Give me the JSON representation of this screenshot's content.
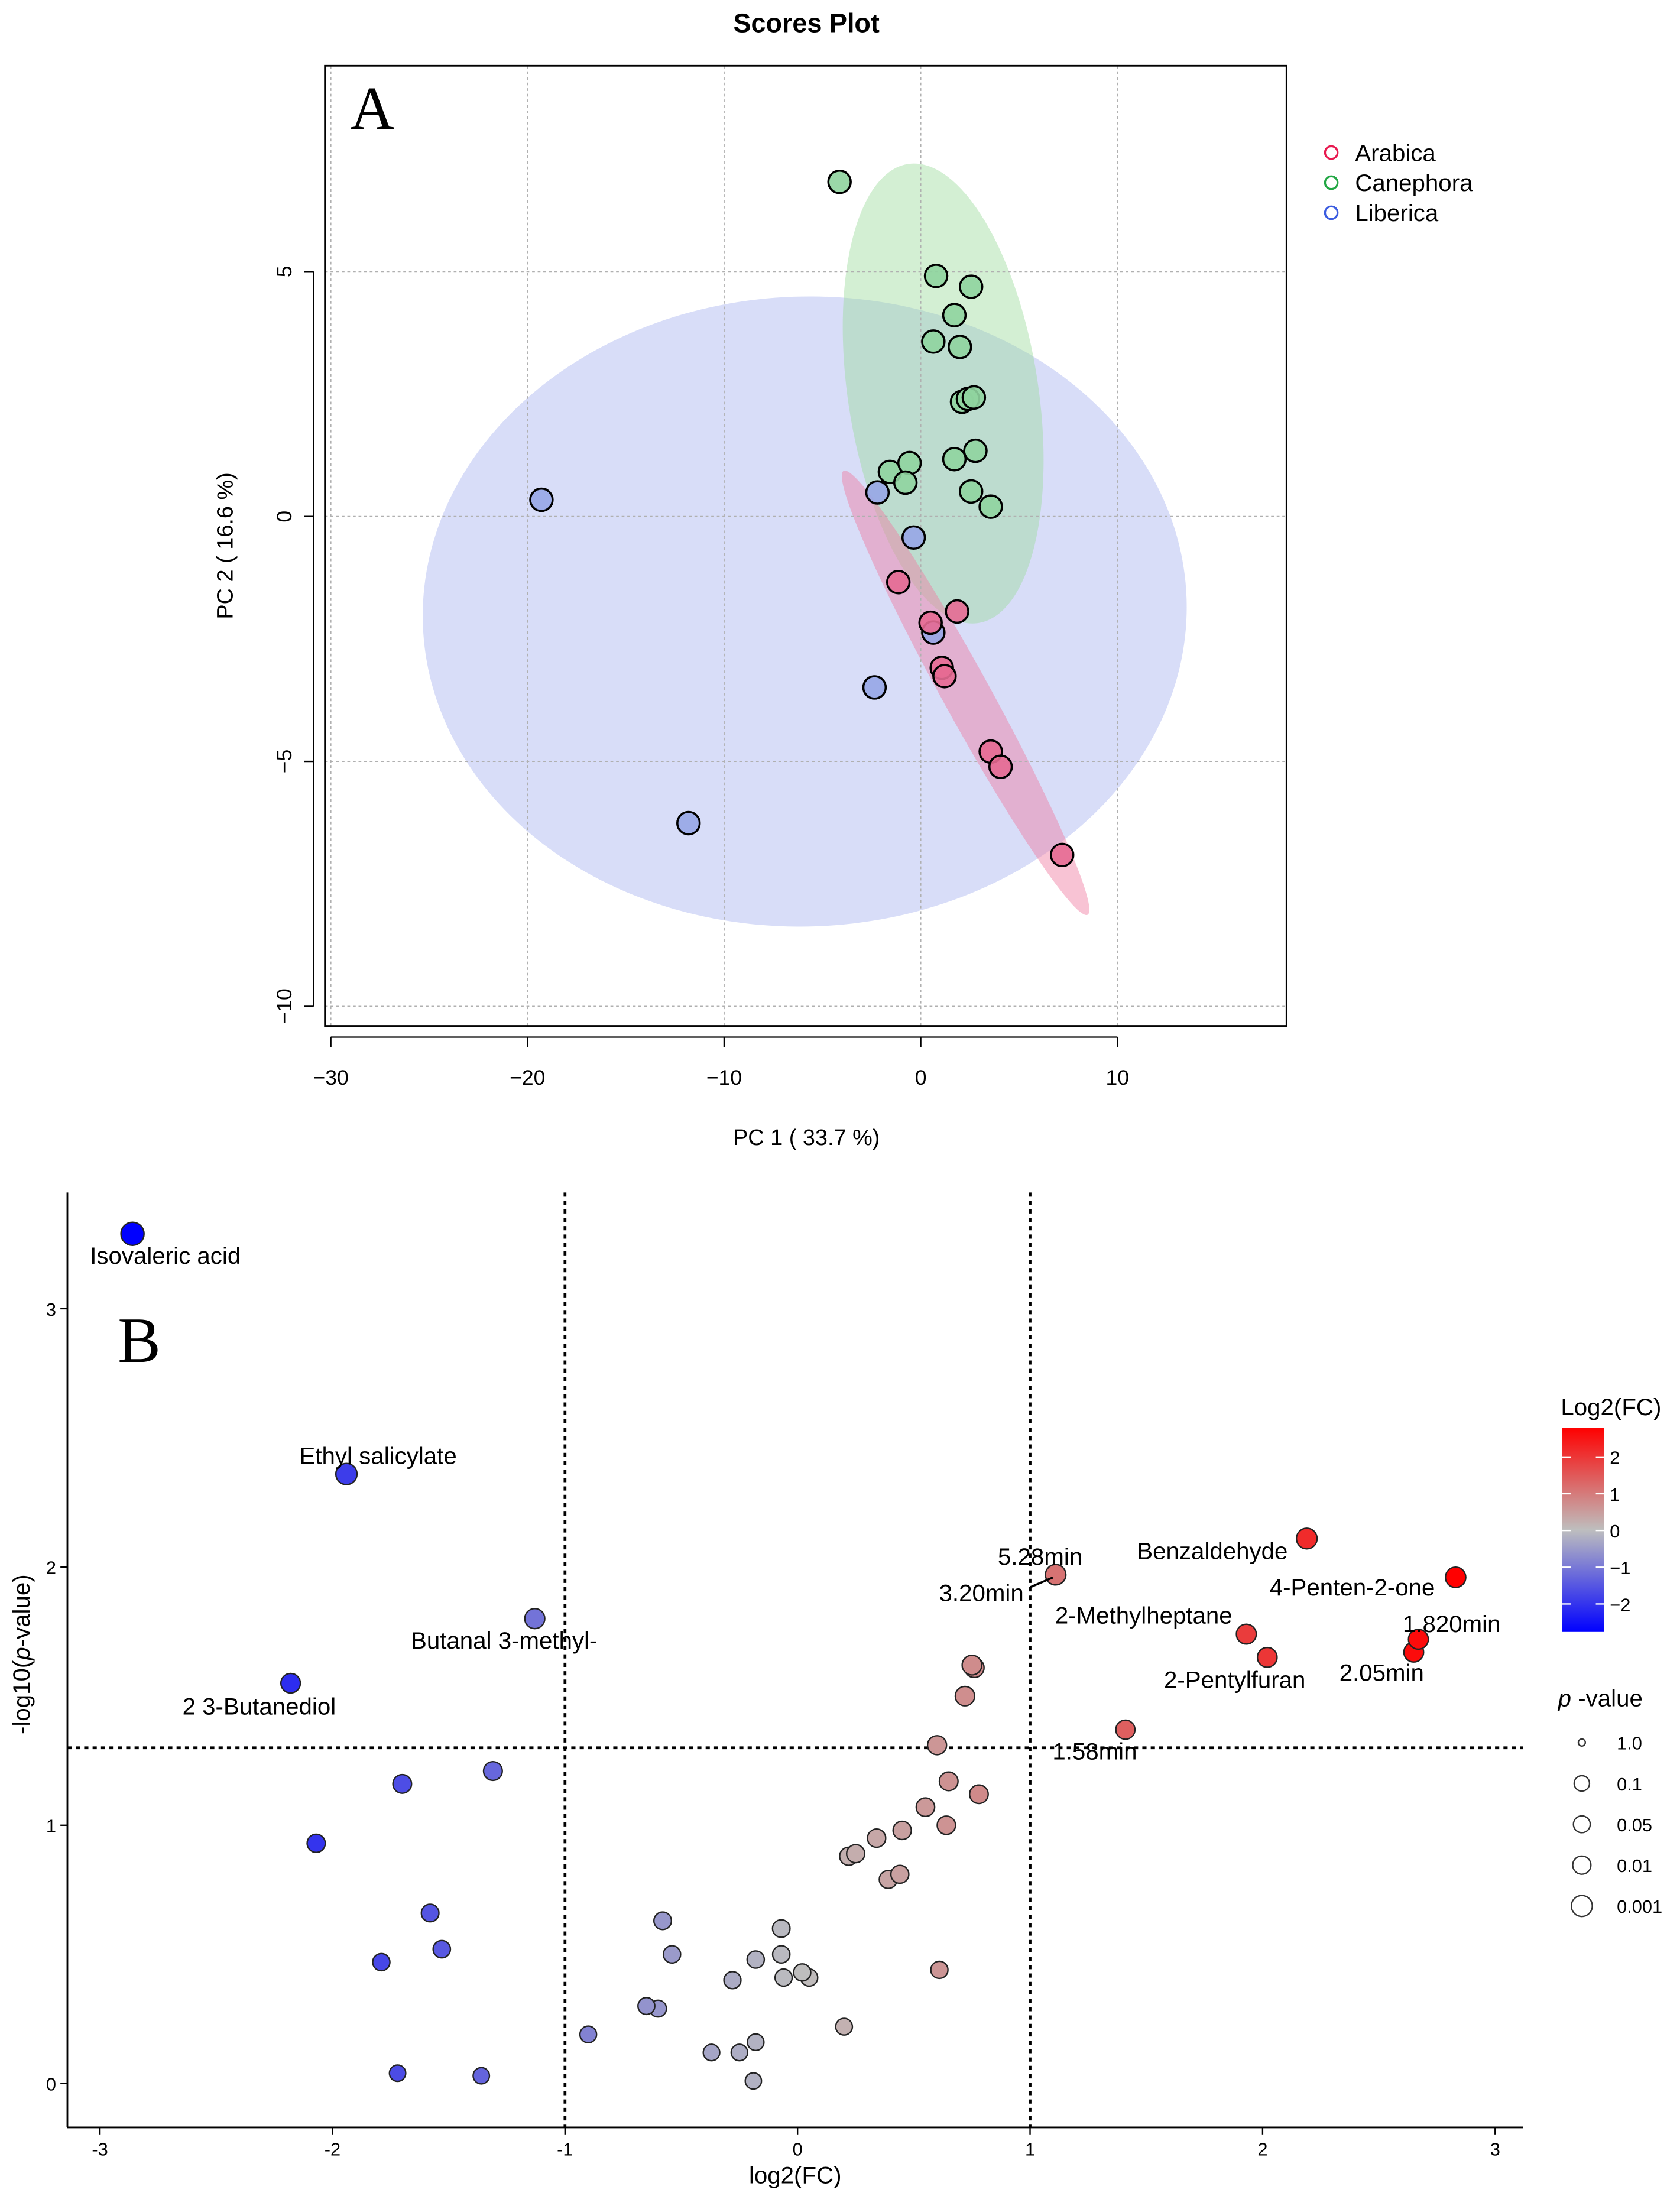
{
  "chart_data": [
    {
      "type": "scatter",
      "panel_label": "A",
      "title": "Scores Plot",
      "xlabel": "PC 1 ( 33.7 %)",
      "ylabel": "PC 2 ( 16.6 %)",
      "xlim": [
        -30.3,
        18.6
      ],
      "ylim": [
        -10.4,
        9.2
      ],
      "xticks": [
        -30,
        -20,
        -10,
        0,
        10
      ],
      "yticks": [
        -10,
        -5,
        0,
        5
      ],
      "grid": true,
      "legend_position": "right",
      "series": [
        {
          "name": "Arabica",
          "color": "#e8194f",
          "fill": "#e66a92",
          "ellipse": {
            "cx": 2.28,
            "cy": -3.6,
            "half_width": 1.21,
            "half_height": 5.17,
            "tilt_deg": -28.8,
            "fill": "#f07aa0"
          },
          "points": [
            [
              -1.14,
              -1.34
            ],
            [
              1.85,
              -1.94
            ],
            [
              0.5,
              -2.17
            ],
            [
              1.07,
              -3.09
            ],
            [
              1.21,
              -3.26
            ],
            [
              3.56,
              -4.8
            ],
            [
              4.06,
              -5.11
            ],
            [
              7.19,
              -6.91
            ]
          ]
        },
        {
          "name": "Canephora",
          "color": "#22a744",
          "fill": "#8fd49e",
          "ellipse": {
            "cx": 1.14,
            "cy": 2.51,
            "half_width": 4.84,
            "half_height": 4.74,
            "tilt_deg": -8.7,
            "fill": "#9ddc9d"
          },
          "points": [
            [
              -4.13,
              6.83
            ],
            [
              0.78,
              4.91
            ],
            [
              2.56,
              4.69
            ],
            [
              1.71,
              4.11
            ],
            [
              0.64,
              3.57
            ],
            [
              1.99,
              3.46
            ],
            [
              2.1,
              2.34
            ],
            [
              2.4,
              2.4
            ],
            [
              2.7,
              2.43
            ],
            [
              2.78,
              1.34
            ],
            [
              1.71,
              1.17
            ],
            [
              -1.57,
              0.91
            ],
            [
              -0.57,
              1.09
            ],
            [
              -0.78,
              0.69
            ],
            [
              2.56,
              0.51
            ],
            [
              3.56,
              0.2
            ]
          ]
        },
        {
          "name": "Liberica",
          "color": "#3b5ce0",
          "fill": "#97a6e6",
          "ellipse": {
            "cx": -5.9,
            "cy": -1.94,
            "half_width": 19.43,
            "half_height": 6.43,
            "tilt_deg": -2,
            "fill": "#a9b4ef"
          },
          "points": [
            [
              -19.29,
              0.34
            ],
            [
              -2.2,
              0.49
            ],
            [
              -0.36,
              -0.43
            ],
            [
              0.64,
              -2.37
            ],
            [
              -2.35,
              -3.49
            ],
            [
              -11.81,
              -6.26
            ]
          ]
        }
      ]
    },
    {
      "type": "scatter",
      "panel_label": "B",
      "title": "",
      "xlabel": "log2(FC)",
      "ylabel_prefix": "-log10(",
      "ylabel_italic": "p",
      "ylabel_suffix": "-value)",
      "xlim": [
        -3.14,
        3.12
      ],
      "ylim": [
        -0.17,
        3.45
      ],
      "xticks": [
        -3,
        -2,
        -1,
        0,
        1,
        2,
        3
      ],
      "yticks": [
        0,
        1,
        2,
        3
      ],
      "thresholds": {
        "x": [
          -1,
          1
        ],
        "y": 1.3
      },
      "color_scale": {
        "title": "Log2(FC)",
        "low": "#0000ff",
        "mid": "#bebebe",
        "high": "#ff0000",
        "range": [
          -2.86,
          2.83
        ],
        "ticks": [
          2,
          1,
          0,
          -1,
          -2
        ],
        "tick_labels": [
          "2",
          "1",
          "0",
          "−1",
          "−2"
        ]
      },
      "size_legend": {
        "title_italic": "p",
        "title_rest": " -value",
        "labels": [
          "1.0",
          "0.1",
          "0.05",
          "0.01",
          "0.001"
        ]
      },
      "points": [
        {
          "x": -2.86,
          "y": 3.29,
          "label": "Isovaleric acid"
        },
        {
          "x": -1.94,
          "y": 2.36,
          "label": "Ethyl salicylate"
        },
        {
          "x": -1.13,
          "y": 1.8,
          "label": "Butanal 3-methyl-"
        },
        {
          "x": -2.18,
          "y": 1.55,
          "label": "2 3-Butanediol"
        },
        {
          "x": 1.11,
          "y": 1.97,
          "label": "5.28min"
        },
        {
          "x": 1.11,
          "y": 1.97,
          "label": "3.20min"
        },
        {
          "x": 2.19,
          "y": 2.11,
          "label": "Benzaldehyde"
        },
        {
          "x": 2.83,
          "y": 1.96,
          "label": "4-Penten-2-one"
        },
        {
          "x": 1.93,
          "y": 1.74,
          "label": "2-Methylheptane"
        },
        {
          "x": 2.02,
          "y": 1.65,
          "label": "2-Pentylfuran"
        },
        {
          "x": 2.67,
          "y": 1.72,
          "label": "1.820min"
        },
        {
          "x": 2.65,
          "y": 1.67,
          "label": "2.05min"
        },
        {
          "x": 1.41,
          "y": 1.37,
          "label": "1.58min"
        },
        {
          "x": -1.7,
          "y": 1.16
        },
        {
          "x": -1.31,
          "y": 1.21
        },
        {
          "x": -2.07,
          "y": 0.93
        },
        {
          "x": -1.58,
          "y": 0.66
        },
        {
          "x": -1.53,
          "y": 0.52
        },
        {
          "x": -1.79,
          "y": 0.47
        },
        {
          "x": -1.72,
          "y": 0.04
        },
        {
          "x": -1.36,
          "y": 0.03
        },
        {
          "x": -0.9,
          "y": 0.19
        },
        {
          "x": -0.58,
          "y": 0.63
        },
        {
          "x": -0.54,
          "y": 0.5
        },
        {
          "x": -0.65,
          "y": 0.3
        },
        {
          "x": -0.6,
          "y": 0.29
        },
        {
          "x": -0.28,
          "y": 0.4
        },
        {
          "x": -0.18,
          "y": 0.48
        },
        {
          "x": -0.07,
          "y": 0.6
        },
        {
          "x": -0.07,
          "y": 0.5
        },
        {
          "x": -0.06,
          "y": 0.41
        },
        {
          "x": 0.02,
          "y": 0.43
        },
        {
          "x": 0.05,
          "y": 0.41
        },
        {
          "x": -0.37,
          "y": 0.12
        },
        {
          "x": -0.25,
          "y": 0.12
        },
        {
          "x": -0.18,
          "y": 0.16
        },
        {
          "x": -0.19,
          "y": 0.01
        },
        {
          "x": 0.2,
          "y": 0.22
        },
        {
          "x": 0.22,
          "y": 0.88
        },
        {
          "x": 0.25,
          "y": 0.89
        },
        {
          "x": 0.34,
          "y": 0.95
        },
        {
          "x": 0.45,
          "y": 0.98
        },
        {
          "x": 0.39,
          "y": 0.79
        },
        {
          "x": 0.44,
          "y": 0.81
        },
        {
          "x": 0.55,
          "y": 1.07
        },
        {
          "x": 0.65,
          "y": 1.17
        },
        {
          "x": 0.64,
          "y": 1.0
        },
        {
          "x": 0.78,
          "y": 1.12
        },
        {
          "x": 0.61,
          "y": 0.44
        },
        {
          "x": 0.6,
          "y": 1.31
        },
        {
          "x": 0.72,
          "y": 1.5
        },
        {
          "x": 0.75,
          "y": 1.62
        },
        {
          "x": 0.76,
          "y": 1.61
        }
      ]
    }
  ]
}
